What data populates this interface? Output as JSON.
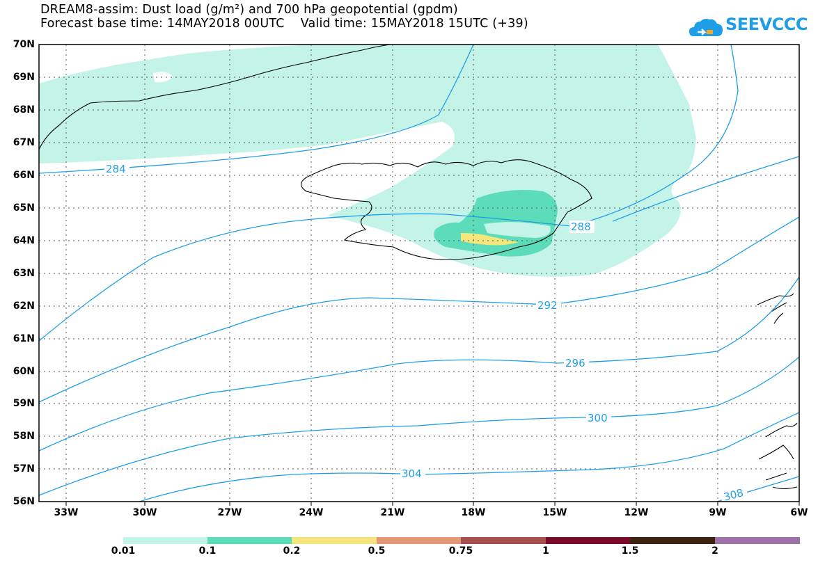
{
  "title": {
    "line1": "DREAM8-assim: Dust load (g/m²) and 700 hPa geopotential (gpdm)",
    "line2": "Forecast base time: 14MAY2018 00UTC    Valid time: 15MAY2018 15UTC (+39)"
  },
  "logo": {
    "text": "SEEVCCC",
    "icon": "cloud-logo-icon"
  },
  "axes": {
    "lat_labels": [
      "70N",
      "69N",
      "68N",
      "67N",
      "66N",
      "65N",
      "64N",
      "63N",
      "62N",
      "61N",
      "60N",
      "59N",
      "58N",
      "57N",
      "56N"
    ],
    "lon_labels": [
      "33W",
      "30W",
      "27W",
      "24W",
      "21W",
      "18W",
      "15W",
      "12W",
      "9W",
      "6W"
    ]
  },
  "contours": {
    "labels": [
      "284",
      "288",
      "292",
      "296",
      "300",
      "304",
      "308"
    ]
  },
  "colorbar": {
    "labels": [
      "0.01",
      "0.1",
      "0.2",
      "0.5",
      "0.75",
      "1",
      "1.5",
      "2"
    ],
    "colors": [
      "#c4f3e8",
      "#5cdcb8",
      "#f4e67c",
      "#e49878",
      "#a85050",
      "#780a2a",
      "#3c2410",
      "#9c72a8"
    ]
  }
}
